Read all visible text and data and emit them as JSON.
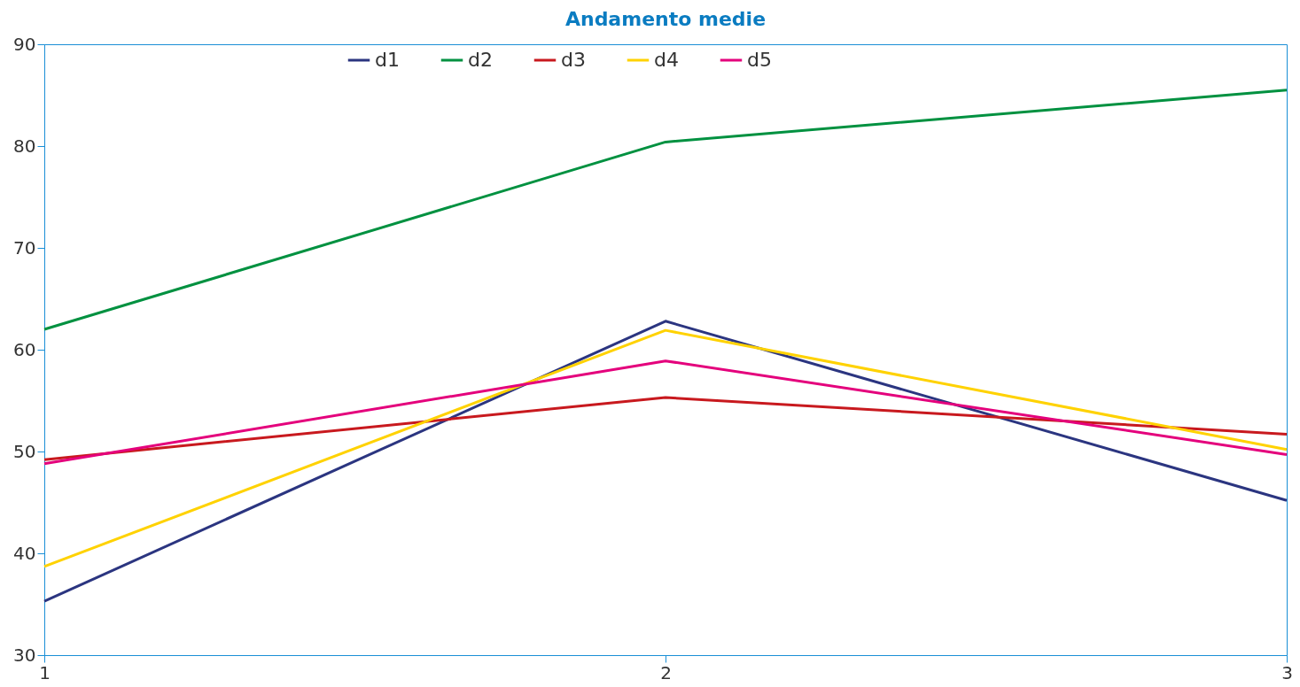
{
  "chart_data": {
    "type": "line",
    "title": "Andamento medie",
    "x": [
      1,
      2,
      3
    ],
    "xlim": [
      1,
      3
    ],
    "xticks": [
      1,
      2,
      3
    ],
    "ylim": [
      30,
      90
    ],
    "yticks": [
      30,
      40,
      50,
      60,
      70,
      80,
      90
    ],
    "grid": false,
    "legend": "top",
    "line_style": "solid",
    "marker": "none",
    "series": [
      {
        "name": "d1",
        "color": "#2b3580",
        "values": [
          35.3,
          62.8,
          45.2
        ]
      },
      {
        "name": "d2",
        "color": "#009140",
        "values": [
          62.0,
          80.4,
          85.5
        ]
      },
      {
        "name": "d3",
        "color": "#c8191e",
        "values": [
          49.2,
          55.3,
          51.7
        ]
      },
      {
        "name": "d4",
        "color": "#ffd200",
        "values": [
          38.7,
          61.9,
          50.2
        ]
      },
      {
        "name": "d5",
        "color": "#e4007c",
        "values": [
          48.8,
          58.9,
          49.7
        ]
      }
    ]
  }
}
